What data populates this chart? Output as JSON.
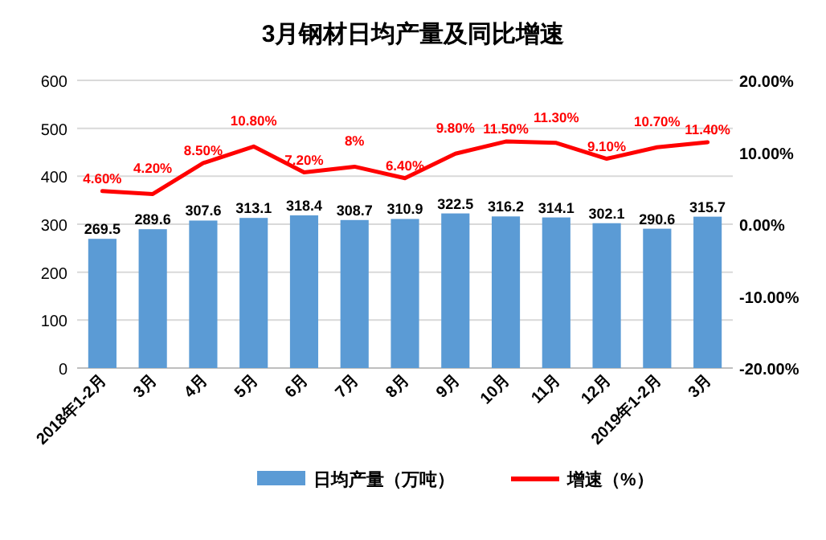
{
  "chart_data": {
    "type": "bar",
    "title": "3月钢材日均产量及同比增速",
    "categories": [
      "2018年1-2月",
      "3月",
      "4月",
      "5月",
      "6月",
      "7月",
      "8月",
      "9月",
      "10月",
      "11月",
      "12月",
      "2019年1-2月",
      "3月"
    ],
    "series": [
      {
        "name": "日均产量（万吨）",
        "color": "#5b9bd5",
        "values": [
          269.5,
          289.6,
          307.6,
          313.1,
          318.4,
          308.7,
          310.9,
          322.5,
          316.2,
          314.1,
          302.1,
          290.6,
          315.7
        ],
        "value_labels": [
          "269.5",
          "289.6",
          "307.6",
          "313.1",
          "318.4",
          "308.7",
          "310.9",
          "322.5",
          "316.2",
          "314.1",
          "302.1",
          "290.6",
          "315.7"
        ]
      },
      {
        "name": "增速（%）",
        "type": "line",
        "axis": "y2",
        "color": "#ff0000",
        "values": [
          4.6,
          4.2,
          8.5,
          10.8,
          7.2,
          8,
          6.4,
          9.8,
          11.5,
          11.3,
          9.1,
          10.7,
          11.4
        ],
        "value_labels": [
          "4.60%",
          "4.20%",
          "8.50%",
          "10.80%",
          "7.20%",
          "8%",
          "6.40%",
          "9.80%",
          "11.50%",
          "11.30%",
          "9.10%",
          "10.70%",
          "11.40%"
        ]
      }
    ],
    "ylim": [
      0,
      600
    ],
    "yticks": [
      0,
      100,
      200,
      300,
      400,
      500,
      600
    ],
    "y2lim": [
      -20,
      20
    ],
    "y2ticks": [
      {
        "value": -20,
        "label": "-20.00%"
      },
      {
        "value": -10,
        "label": "-10.00%"
      },
      {
        "value": 0,
        "label": "0.00%"
      },
      {
        "value": 10,
        "label": "10.00%"
      },
      {
        "value": 20,
        "label": "20.00%"
      }
    ],
    "grid": "y",
    "legend": "bottom"
  }
}
